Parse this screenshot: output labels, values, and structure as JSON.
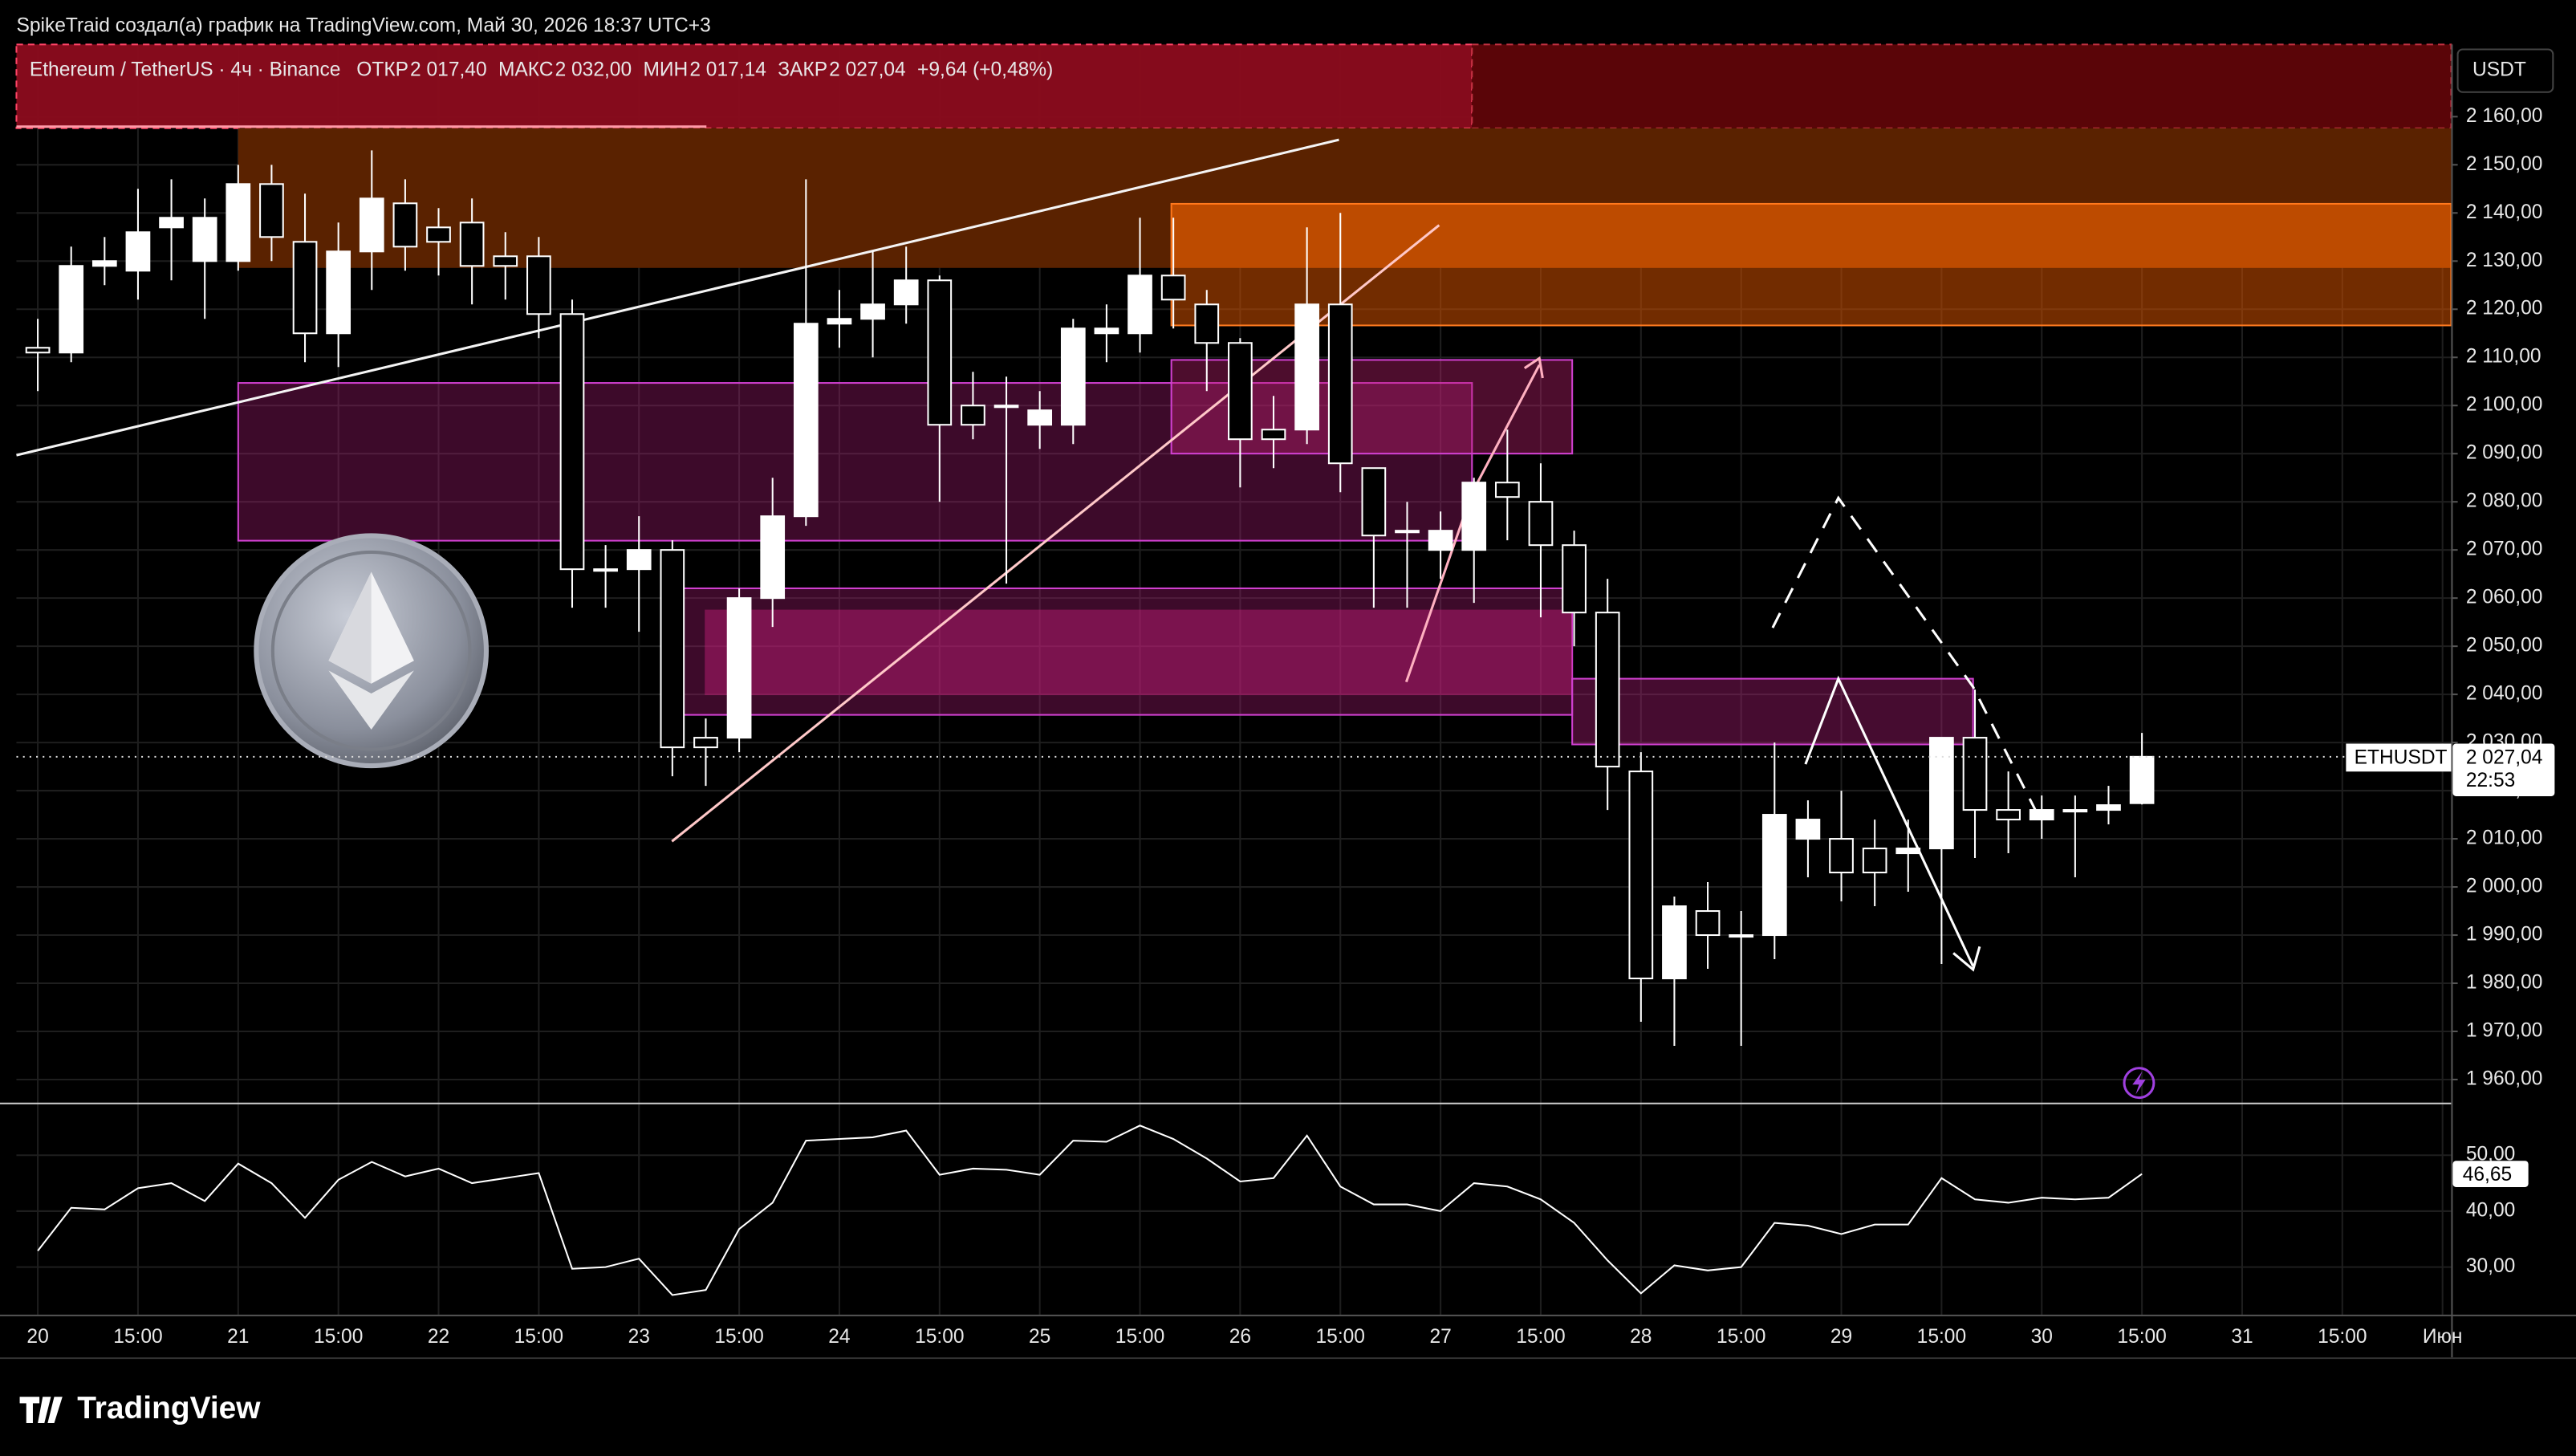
{
  "header": {
    "attribution": "SpikeTraid создал(а) график на TradingView.com, Май 30, 2026 18:37 UTC+3"
  },
  "footer": {
    "brand": "TradingView"
  },
  "chart_data": [
    {
      "type": "candlestick",
      "title": "Ethereum / TetherUS · 4ч · Binance",
      "ohlc_legend": [
        {
          "label": "ОТКР",
          "value": "2 017,40"
        },
        {
          "label": "МАКС",
          "value": "2 032,00"
        },
        {
          "label": "МИН",
          "value": "2 017,14"
        },
        {
          "label": "ЗАКР",
          "value": "2 027,04"
        }
      ],
      "change": "+9,64 (+0,48%)",
      "currency": "USDT",
      "symbol_tag": "ETHUSDT",
      "countdown": "22:53",
      "categories": [
        "20",
        null,
        null,
        "15:00",
        null,
        null,
        "21",
        null,
        null,
        "15:00",
        null,
        null,
        "22",
        null,
        null,
        "15:00",
        null,
        null,
        "23",
        null,
        null,
        "15:00",
        null,
        null,
        "24",
        null,
        null,
        "15:00",
        null,
        null,
        "25",
        null,
        null,
        "15:00",
        null,
        null,
        "26",
        null,
        null,
        "15:00",
        null,
        null,
        "27",
        null,
        null,
        "15:00",
        null,
        null,
        "28",
        null,
        null,
        "15:00",
        null,
        null,
        "29",
        null,
        null,
        "15:00",
        null,
        null,
        "30",
        null,
        null,
        "15:00",
        null,
        null,
        "31",
        null,
        null,
        "15:00",
        null,
        null,
        "Июн"
      ],
      "open": [
        2112,
        2111,
        2129,
        2128,
        2137,
        2130,
        2130,
        2146,
        2134,
        2115,
        2132,
        2142,
        2137,
        2138,
        2131,
        2131,
        2119,
        2066,
        2066,
        2070,
        2031,
        2031,
        2060,
        2077,
        2117,
        2118,
        2121,
        2126,
        2100,
        2100,
        2096,
        2096,
        2115,
        2115,
        2127,
        2121,
        2113,
        2095,
        2095,
        2121,
        2087,
        2074,
        2070,
        2070,
        2084,
        2080,
        2071,
        2057,
        2024,
        1981,
        1995,
        1990,
        1990,
        2010,
        2010,
        2008,
        2007,
        2008,
        2031,
        2016,
        2014,
        2016,
        2016,
        2017.4,
        null,
        null,
        null,
        null,
        null,
        null,
        null,
        null,
        null
      ],
      "high": [
        2118,
        2133,
        2135,
        2145,
        2147,
        2143,
        2150,
        2150,
        2144,
        2138,
        2153,
        2147,
        2141,
        2143,
        2136,
        2135,
        2122,
        2071,
        2077,
        2072,
        2035,
        2062,
        2085,
        2147,
        2124,
        2132,
        2133,
        2127,
        2107,
        2106,
        2103,
        2118,
        2121,
        2139,
        2139,
        2124,
        2114,
        2102,
        2137,
        2140,
        2087,
        2080,
        2078,
        2085,
        2095,
        2088,
        2074,
        2064,
        2028,
        1998,
        2001,
        1995,
        2030,
        2018,
        2020,
        2014,
        2014,
        2031,
        2041,
        2024,
        2019,
        2019,
        2021,
        2032,
        null,
        null,
        null,
        null,
        null,
        null,
        null,
        null,
        null
      ],
      "low": [
        2103,
        2109,
        2125,
        2122,
        2126,
        2118,
        2128,
        2130,
        2109,
        2108,
        2124,
        2128,
        2127,
        2121,
        2122,
        2114,
        2058,
        2058,
        2053,
        2023,
        2021,
        2028,
        2054,
        2075,
        2112,
        2110,
        2117,
        2080,
        2093,
        2063,
        2091,
        2092,
        2109,
        2111,
        2116,
        2103,
        2083,
        2087,
        2092,
        2082,
        2058,
        2058,
        2064,
        2059,
        2072,
        2056,
        2050,
        2016,
        1972,
        1967,
        1983,
        1967,
        1985,
        2002,
        1997,
        1996,
        1999,
        1984,
        2006,
        2007,
        2010,
        2002,
        2013,
        2017.14,
        null,
        null,
        null,
        null,
        null,
        null,
        null,
        null,
        null
      ],
      "close": [
        2111,
        2129,
        2130,
        2136,
        2139,
        2139,
        2146,
        2135,
        2115,
        2132,
        2143,
        2133,
        2134,
        2129,
        2129,
        2119,
        2066,
        2066,
        2070,
        2029,
        2029,
        2060,
        2077,
        2117,
        2118,
        2121,
        2126,
        2096,
        2096,
        2100,
        2099,
        2116,
        2116,
        2127,
        2122,
        2113,
        2093,
        2093,
        2121,
        2088,
        2073,
        2074,
        2074,
        2084,
        2081,
        2071,
        2057,
        2025,
        1981,
        1996,
        1990,
        1990,
        2015,
        2014,
        2003,
        2003,
        2008,
        2031,
        2016,
        2014,
        2016,
        2016,
        2017,
        2027.04,
        null,
        null,
        null,
        null,
        null,
        null,
        null,
        null,
        null
      ],
      "value_labels": [
        null,
        null,
        null,
        null,
        null,
        null,
        null,
        null,
        null,
        null,
        null,
        null,
        null,
        null,
        null,
        null,
        null,
        null,
        null,
        null,
        null,
        null,
        null,
        null,
        null,
        null,
        null,
        null,
        null,
        null,
        null,
        null,
        null,
        null,
        null,
        null,
        null,
        null,
        null,
        null,
        null,
        null,
        null,
        null,
        null,
        null,
        null,
        null,
        null,
        null,
        null,
        null,
        null,
        null,
        null,
        null,
        null,
        null,
        null,
        null,
        null,
        null,
        null,
        "2 027,04",
        null,
        null,
        null,
        null,
        null,
        null,
        null,
        null,
        null
      ],
      "up_color": "#ffffff",
      "down_color": "#000000",
      "wick_color": "#ffffff",
      "ylim": [
        1955.2,
        2175.0
      ],
      "yticks": [
        {
          "value": 1960,
          "label": "1 960,00"
        },
        {
          "value": 1970,
          "label": "1 970,00"
        },
        {
          "value": 1980,
          "label": "1 980,00"
        },
        {
          "value": 1990,
          "label": "1 990,00"
        },
        {
          "value": 2000,
          "label": "2 000,00"
        },
        {
          "value": 2010,
          "label": "2 010,00"
        },
        {
          "value": 2020,
          "label": "2 020,00"
        },
        {
          "value": 2030,
          "label": "2 030,00"
        },
        {
          "value": 2040,
          "label": "2 040,00"
        },
        {
          "value": 2050,
          "label": "2 050,00"
        },
        {
          "value": 2060,
          "label": "2 060,00"
        },
        {
          "value": 2070,
          "label": "2 070,00"
        },
        {
          "value": 2080,
          "label": "2 080,00"
        },
        {
          "value": 2090,
          "label": "2 090,00"
        },
        {
          "value": 2100,
          "label": "2 100,00"
        },
        {
          "value": 2110,
          "label": "2 110,00"
        },
        {
          "value": 2120,
          "label": "2 120,00"
        },
        {
          "value": 2130,
          "label": "2 130,00"
        },
        {
          "value": 2140,
          "label": "2 140,00"
        },
        {
          "value": 2150,
          "label": "2 150,00"
        },
        {
          "value": 2160,
          "label": "2 160,00"
        }
      ],
      "grid": true
    },
    {
      "type": "line",
      "color": "#ffffff",
      "values": [
        32.9,
        40.6,
        40.3,
        44.1,
        45.0,
        41.8,
        48.5,
        45.0,
        38.8,
        45.6,
        48.8,
        46.2,
        47.6,
        45.0,
        45.9,
        46.8,
        29.7,
        30.0,
        31.5,
        25.0,
        25.9,
        36.8,
        41.5,
        52.6,
        52.9,
        53.2,
        54.4,
        46.5,
        47.6,
        47.4,
        46.5,
        52.6,
        52.4,
        55.3,
        52.9,
        49.4,
        45.3,
        45.9,
        53.5,
        44.4,
        41.2,
        41.2,
        40.0,
        45.0,
        44.4,
        42.1,
        37.9,
        31.2,
        25.3,
        30.3,
        29.4,
        30.0,
        37.9,
        37.4,
        35.9,
        37.6,
        37.6,
        45.9,
        42.1,
        41.5,
        42.4,
        42.1,
        42.4,
        46.65,
        null,
        null,
        null,
        null,
        null,
        null,
        null,
        null,
        null
      ],
      "value_labels": [
        null,
        null,
        null,
        null,
        null,
        null,
        null,
        null,
        null,
        null,
        null,
        null,
        null,
        null,
        null,
        null,
        null,
        null,
        null,
        null,
        null,
        null,
        null,
        null,
        null,
        null,
        null,
        null,
        null,
        null,
        null,
        null,
        null,
        null,
        null,
        null,
        null,
        null,
        null,
        null,
        null,
        null,
        null,
        null,
        null,
        null,
        null,
        null,
        null,
        null,
        null,
        null,
        null,
        null,
        null,
        null,
        null,
        null,
        null,
        null,
        null,
        null,
        null,
        "46,65",
        null,
        null,
        null,
        null,
        null,
        null,
        null,
        null,
        null
      ],
      "ylim": [
        21.5,
        59.1
      ],
      "yticks": [
        {
          "value": 30,
          "label": "30,00"
        },
        {
          "value": 40,
          "label": "40,00"
        },
        {
          "value": 50,
          "label": "50,00"
        }
      ],
      "grid": true
    }
  ]
}
